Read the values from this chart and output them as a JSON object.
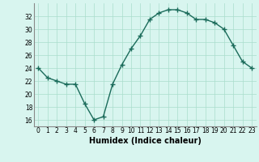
{
  "x": [
    0,
    1,
    2,
    3,
    4,
    5,
    6,
    7,
    8,
    9,
    10,
    11,
    12,
    13,
    14,
    15,
    16,
    17,
    18,
    19,
    20,
    21,
    22,
    23
  ],
  "y": [
    24.0,
    22.5,
    22.0,
    21.5,
    21.5,
    18.5,
    16.0,
    16.5,
    21.5,
    24.5,
    27.0,
    29.0,
    31.5,
    32.5,
    33.0,
    33.0,
    32.5,
    31.5,
    31.5,
    31.0,
    30.0,
    27.5,
    25.0,
    24.0
  ],
  "line_color": "#1a6b5a",
  "marker": "+",
  "marker_size": 4,
  "bg_color": "#d8f5ef",
  "grid_color": "#aaddcc",
  "xlabel": "Humidex (Indice chaleur)",
  "ylim": [
    15,
    34
  ],
  "xlim": [
    -0.5,
    23.5
  ],
  "yticks": [
    16,
    18,
    20,
    22,
    24,
    26,
    28,
    30,
    32
  ],
  "xticks": [
    0,
    1,
    2,
    3,
    4,
    5,
    6,
    7,
    8,
    9,
    10,
    11,
    12,
    13,
    14,
    15,
    16,
    17,
    18,
    19,
    20,
    21,
    22,
    23
  ],
  "tick_fontsize": 5.5,
  "label_fontsize": 7,
  "line_width": 1.0
}
